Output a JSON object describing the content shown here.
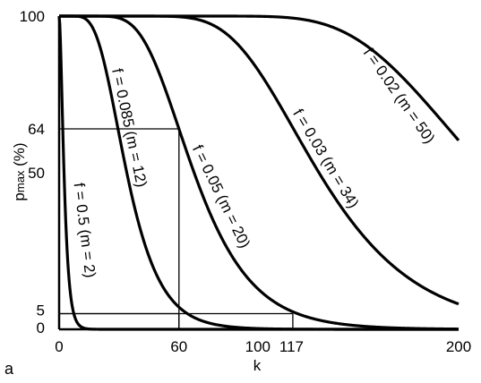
{
  "chart_data": {
    "type": "line",
    "title": "",
    "xlabel": "k",
    "ylabel_main": "p",
    "ylabel_sub": "max",
    "ylabel_unit": " (%)",
    "panel_label": "a",
    "xlim": [
      0,
      200
    ],
    "ylim": [
      0,
      100
    ],
    "x_ticks": [
      "0",
      "60",
      "100",
      "117",
      "200"
    ],
    "x_tick_values": [
      0,
      60,
      100,
      117,
      200
    ],
    "y_ticks": [
      "100",
      "64",
      "50",
      "5",
      "0"
    ],
    "y_tick_values": [
      100,
      64,
      50,
      5,
      0
    ],
    "grid": false,
    "legend": "none",
    "series": [
      {
        "name": "f = 0.5 (m = 2)",
        "f": 0.5,
        "m": 2
      },
      {
        "name": "f = 0.085 (m = 12)",
        "f": 0.085,
        "m": 12
      },
      {
        "name": "f = 0.05 (m = 20)",
        "f": 0.05,
        "m": 20
      },
      {
        "name": "f = 0.03 (m = 34)",
        "f": 0.03,
        "m": 34
      },
      {
        "name": "f = 0.02 (m = 50)",
        "f": 0.02,
        "m": 50
      }
    ],
    "reference_lines": [
      {
        "x": 60,
        "y": 64
      },
      {
        "x": 60,
        "y": 5
      },
      {
        "x": 117,
        "y": 5
      }
    ],
    "line_color": "#000000"
  }
}
